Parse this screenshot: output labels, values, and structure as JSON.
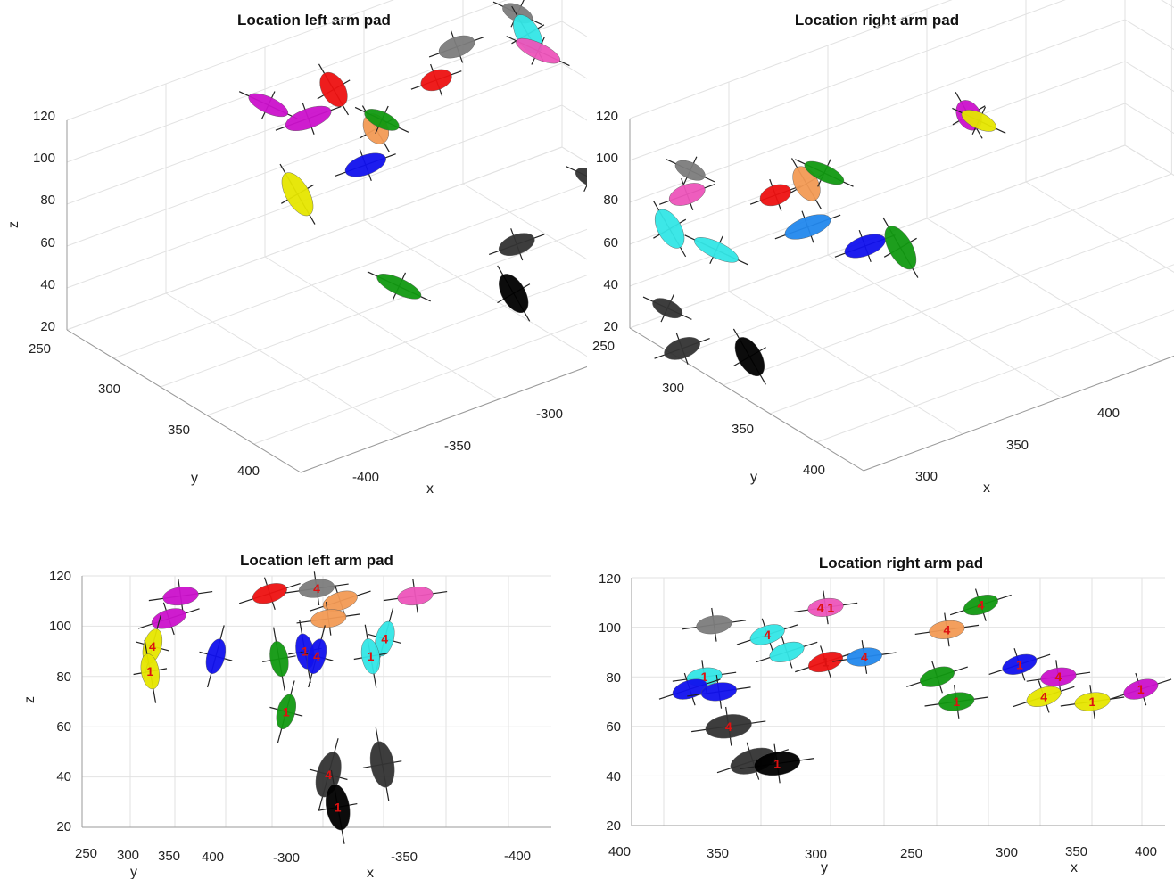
{
  "chart_data": [
    {
      "type": "scatter",
      "title": "Location left arm pad",
      "xlabel": "x",
      "ylabel": "y",
      "zlabel": "z",
      "xticks": [
        "-400",
        "-350",
        "-300"
      ],
      "yticks": [
        "250",
        "300",
        "350",
        "400"
      ],
      "zticks": [
        "20",
        "40",
        "60",
        "80",
        "100",
        "120"
      ],
      "grid": true,
      "ellipses": [
        {
          "name": "gray",
          "c": "#7d7d7d",
          "x": -300,
          "y": 268,
          "z": 104
        },
        {
          "name": "gray",
          "c": "#7d7d7d",
          "x": -318,
          "y": 270,
          "z": 100
        },
        {
          "name": "cyan",
          "c": "#33e6e6",
          "x": -300,
          "y": 275,
          "z": 97
        },
        {
          "name": "pink",
          "c": "#ee55bb",
          "x": -300,
          "y": 282,
          "z": 92
        },
        {
          "name": "red",
          "c": "#ee1111",
          "x": -330,
          "y": 285,
          "z": 98
        },
        {
          "name": "red",
          "c": "#ee1111",
          "x": -352,
          "y": 268,
          "z": 100
        },
        {
          "name": "magenta",
          "c": "#cc11cc",
          "x": -368,
          "y": 262,
          "z": 100
        },
        {
          "name": "magenta",
          "c": "#cc11cc",
          "x": -360,
          "y": 270,
          "z": 92
        },
        {
          "name": "orange",
          "c": "#f39a55",
          "x": -345,
          "y": 280,
          "z": 82
        },
        {
          "name": "green",
          "c": "#119911",
          "x": -345,
          "y": 284,
          "z": 88
        },
        {
          "name": "blue",
          "c": "#1111ee",
          "x": -350,
          "y": 285,
          "z": 70
        },
        {
          "name": "yellow",
          "c": "#e6e600",
          "x": -368,
          "y": 282,
          "z": 66
        },
        {
          "name": "black",
          "c": "#333333",
          "x": -305,
          "y": 330,
          "z": 55
        },
        {
          "name": "black",
          "c": "#333333",
          "x": -330,
          "y": 340,
          "z": 43
        },
        {
          "name": "black",
          "c": "#000000",
          "x": -335,
          "y": 350,
          "z": 27
        },
        {
          "name": "green",
          "c": "#119911",
          "x": -355,
          "y": 320,
          "z": 30
        }
      ]
    },
    {
      "type": "scatter",
      "title": "Location right arm pad",
      "xlabel": "x",
      "ylabel": "y",
      "zlabel": "z",
      "xticks": [
        "300",
        "350",
        "400"
      ],
      "yticks": [
        "250",
        "300",
        "350",
        "400"
      ],
      "zticks": [
        "20",
        "40",
        "60",
        "80",
        "100",
        "120"
      ],
      "grid": true,
      "ellipses": [
        {
          "name": "gray",
          "c": "#7d7d7d",
          "x": 295,
          "y": 255,
          "z": 88
        },
        {
          "name": "pink",
          "c": "#ee55bb",
          "x": 290,
          "y": 265,
          "z": 84
        },
        {
          "name": "cyan",
          "c": "#33e6e6",
          "x": 283,
          "y": 270,
          "z": 74
        },
        {
          "name": "cyan",
          "c": "#33e6e6",
          "x": 290,
          "y": 285,
          "z": 66
        },
        {
          "name": "red",
          "c": "#ee1111",
          "x": 315,
          "y": 265,
          "z": 68
        },
        {
          "name": "orange",
          "c": "#f39a55",
          "x": 325,
          "y": 262,
          "z": 66
        },
        {
          "name": "green",
          "c": "#119911",
          "x": 330,
          "y": 262,
          "z": 68
        },
        {
          "name": "blue",
          "c": "#2288ee",
          "x": 320,
          "y": 275,
          "z": 54
        },
        {
          "name": "magenta",
          "c": "#cc11cc",
          "x": 380,
          "y": 240,
          "z": 55
        },
        {
          "name": "yellow",
          "c": "#e6e600",
          "x": 382,
          "y": 242,
          "z": 52
        },
        {
          "name": "blue",
          "c": "#1111ee",
          "x": 330,
          "y": 290,
          "z": 45
        },
        {
          "name": "green",
          "c": "#119911",
          "x": 340,
          "y": 290,
          "z": 38
        },
        {
          "name": "black",
          "c": "#333333",
          "x": 270,
          "y": 300,
          "z": 57
        },
        {
          "name": "black",
          "c": "#333333",
          "x": 270,
          "y": 310,
          "z": 42
        },
        {
          "name": "black",
          "c": "#000000",
          "x": 285,
          "y": 320,
          "z": 33
        }
      ]
    },
    {
      "type": "scatter",
      "title": "Location left arm pad",
      "xlabel": "x",
      "ylabel": "y",
      "zlabel": "z",
      "xticks": [
        "-300",
        "-350",
        "-400"
      ],
      "yticks": [
        "250",
        "300",
        "350",
        "400"
      ],
      "zticks": [
        "20",
        "40",
        "60",
        "80",
        "100",
        "120"
      ],
      "grid": true,
      "ellipses": [
        {
          "name": "magenta",
          "c": "#cc11cc",
          "x": -262,
          "z": 112,
          "label": ""
        },
        {
          "name": "red",
          "c": "#ee1111",
          "x": -300,
          "z": 113,
          "label": ""
        },
        {
          "name": "gray",
          "c": "#7d7d7d",
          "x": -320,
          "z": 115,
          "label": "4"
        },
        {
          "name": "orange",
          "c": "#f39a55",
          "x": -330,
          "z": 110,
          "label": ""
        },
        {
          "name": "pink",
          "c": "#ee55bb",
          "x": -362,
          "z": 112,
          "label": ""
        },
        {
          "name": "magenta",
          "c": "#cc11cc",
          "x": -257,
          "z": 103,
          "label": ""
        },
        {
          "name": "orange",
          "c": "#f39a55",
          "x": -325,
          "z": 103,
          "label": ""
        },
        {
          "name": "yellow",
          "c": "#e6e600",
          "x": -250,
          "z": 92,
          "label": "4"
        },
        {
          "name": "yellow",
          "c": "#e6e600",
          "x": -249,
          "z": 82,
          "label": "1"
        },
        {
          "name": "blue",
          "c": "#1111ee",
          "x": -277,
          "z": 88,
          "label": ""
        },
        {
          "name": "blue",
          "c": "#1111ee",
          "x": -315,
          "z": 90,
          "label": "1"
        },
        {
          "name": "blue",
          "c": "#1111ee",
          "x": -320,
          "z": 88,
          "label": "4"
        },
        {
          "name": "green",
          "c": "#119911",
          "x": -304,
          "z": 87,
          "label": ""
        },
        {
          "name": "cyan",
          "c": "#33e6e6",
          "x": -349,
          "z": 95,
          "label": "4"
        },
        {
          "name": "cyan",
          "c": "#33e6e6",
          "x": -343,
          "z": 88,
          "label": "1"
        },
        {
          "name": "green",
          "c": "#119911",
          "x": -307,
          "z": 66,
          "label": "1"
        },
        {
          "name": "black",
          "c": "#333333",
          "x": -348,
          "z": 45,
          "label": ""
        },
        {
          "name": "black",
          "c": "#333333",
          "x": -325,
          "z": 41,
          "label": "4"
        },
        {
          "name": "black",
          "c": "#000000",
          "x": -329,
          "z": 28,
          "label": "1"
        }
      ]
    },
    {
      "type": "scatter",
      "title": "Location right arm pad",
      "xlabel": "x",
      "ylabel": "y",
      "zlabel": "z",
      "xticks": [
        "400",
        "350",
        "300",
        "250",
        "300",
        "350",
        "400"
      ],
      "yticks": [],
      "zticks": [
        "20",
        "40",
        "60",
        "80",
        "100",
        "120"
      ],
      "grid": true,
      "ellipses": [
        {
          "name": "pink",
          "c": "#ee55bb",
          "x": 290,
          "z": 108,
          "label": "4 1"
        },
        {
          "name": "green",
          "c": "#119911",
          "x": 322,
          "z": 109,
          "label": "4"
        },
        {
          "name": "gray",
          "c": "#7d7d7d",
          "x": 267,
          "z": 101,
          "label": ""
        },
        {
          "name": "cyan",
          "c": "#33e6e6",
          "x": 278,
          "z": 97,
          "label": "4"
        },
        {
          "name": "cyan",
          "c": "#33e6e6",
          "x": 265,
          "z": 80,
          "label": "1"
        },
        {
          "name": "cyan",
          "c": "#33e6e6",
          "x": 282,
          "z": 90,
          "label": ""
        },
        {
          "name": "orange",
          "c": "#f39a55",
          "x": 315,
          "z": 99,
          "label": "4"
        },
        {
          "name": "red",
          "c": "#ee1111",
          "x": 290,
          "z": 86,
          "label": "1"
        },
        {
          "name": "blue",
          "c": "#2288ee",
          "x": 298,
          "z": 88,
          "label": "4"
        },
        {
          "name": "blue",
          "c": "#1111ee",
          "x": 262,
          "z": 75,
          "label": ""
        },
        {
          "name": "blue",
          "c": "#1111ee",
          "x": 268,
          "z": 74,
          "label": ""
        },
        {
          "name": "green",
          "c": "#119911",
          "x": 313,
          "z": 80,
          "label": ""
        },
        {
          "name": "green",
          "c": "#119911",
          "x": 317,
          "z": 70,
          "label": "1"
        },
        {
          "name": "blue",
          "c": "#1111ee",
          "x": 330,
          "z": 85,
          "label": "1"
        },
        {
          "name": "magenta",
          "c": "#cc11cc",
          "x": 338,
          "z": 80,
          "label": "4"
        },
        {
          "name": "yellow",
          "c": "#e6e600",
          "x": 335,
          "z": 72,
          "label": "4"
        },
        {
          "name": "yellow",
          "c": "#e6e600",
          "x": 345,
          "z": 70,
          "label": "1"
        },
        {
          "name": "magenta",
          "c": "#cc11cc",
          "x": 355,
          "z": 75,
          "label": "1"
        },
        {
          "name": "black",
          "c": "#333333",
          "x": 270,
          "z": 60,
          "label": "4"
        },
        {
          "name": "black",
          "c": "#333333",
          "x": 275,
          "z": 46,
          "label": ""
        },
        {
          "name": "black",
          "c": "#000000",
          "x": 280,
          "z": 45,
          "label": "1"
        }
      ]
    }
  ]
}
